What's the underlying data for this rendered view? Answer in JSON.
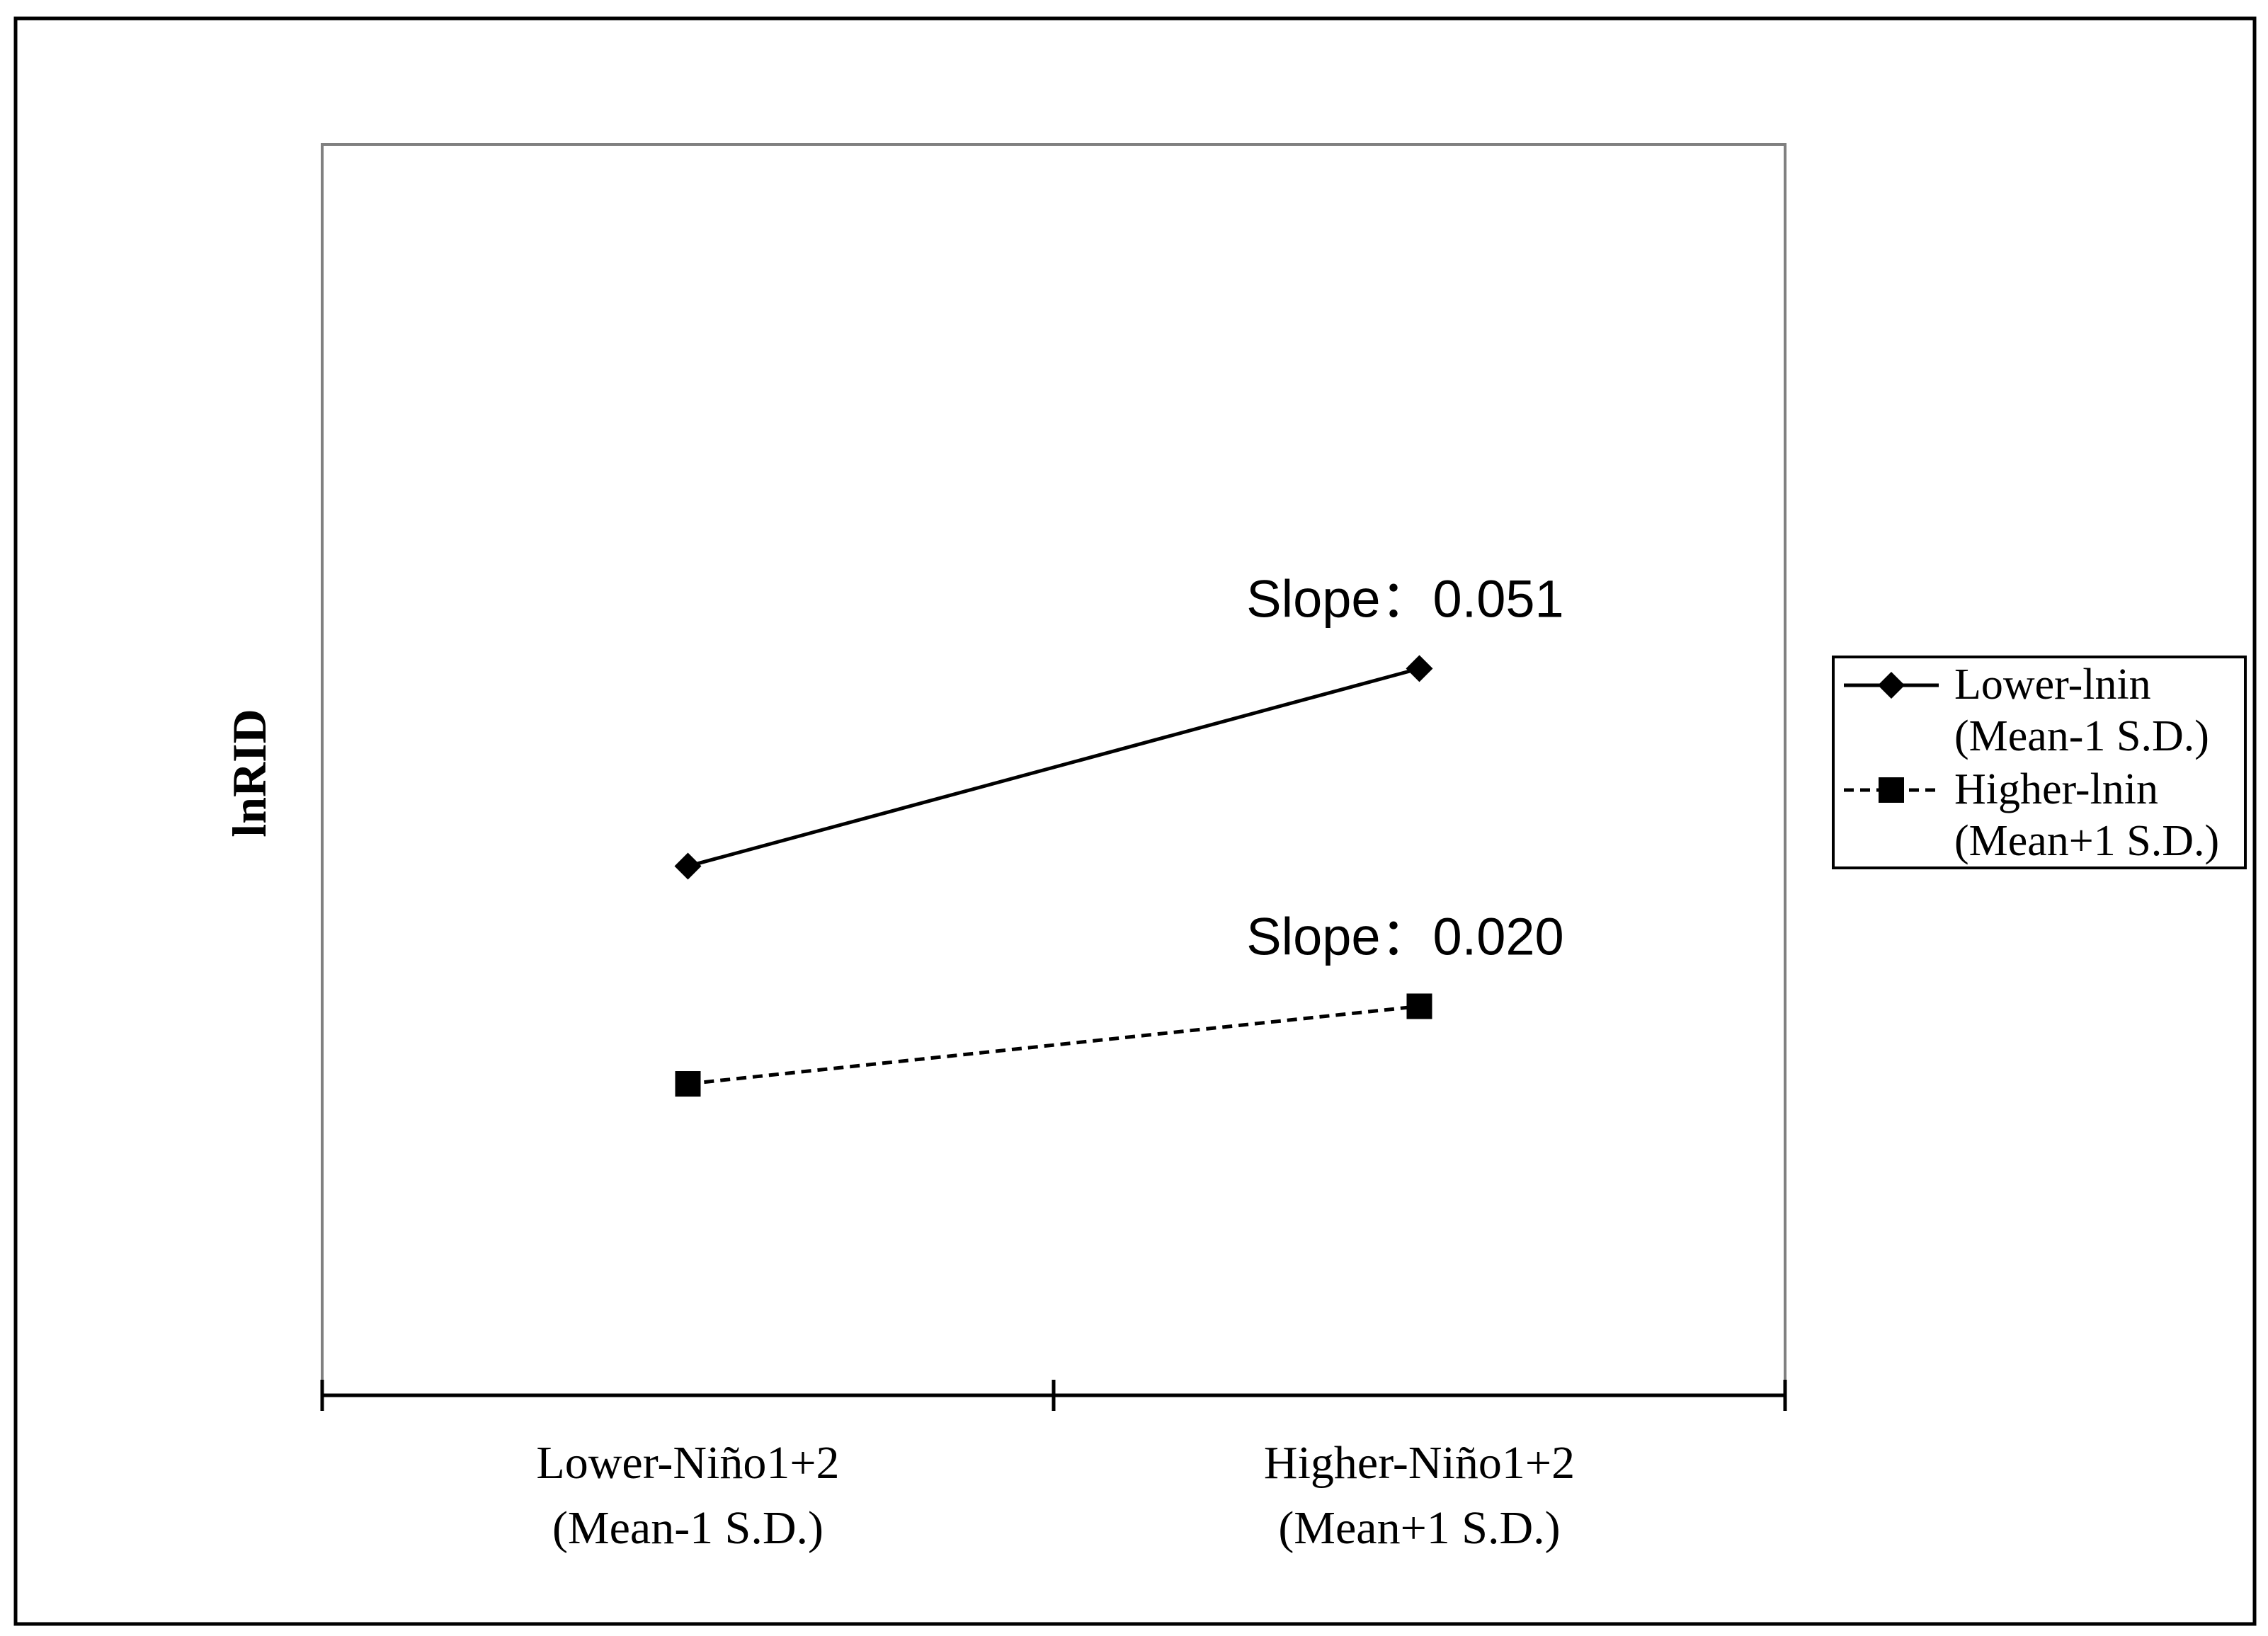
{
  "chart_data": {
    "type": "line",
    "ylabel": "lnRID",
    "categories": [
      [
        "Lower-Niño1+2",
        "(Mean-1 S.D.)"
      ],
      [
        "Higher-Niño1+2",
        "(Mean+1 S.D.)"
      ]
    ],
    "ylim": [
      0,
      1
    ],
    "grid": false,
    "legend_position": "right",
    "series": [
      {
        "legend": [
          "Lower-lnin",
          "(Mean-1 S.D.)"
        ],
        "values": [
          0.423,
          0.581
        ],
        "line_style": "solid",
        "marker": "diamond",
        "annotation": "Slope：0.051"
      },
      {
        "legend": [
          "Higher-lnin",
          "(Mean+1 S.D.)"
        ],
        "values": [
          0.249,
          0.311
        ],
        "line_style": "dashed",
        "marker": "square",
        "annotation": "Slope：0.020"
      }
    ],
    "colors": {
      "line": "#000000",
      "frame": "#000000",
      "plot_border": "#808080",
      "background": "#ffffff"
    }
  }
}
